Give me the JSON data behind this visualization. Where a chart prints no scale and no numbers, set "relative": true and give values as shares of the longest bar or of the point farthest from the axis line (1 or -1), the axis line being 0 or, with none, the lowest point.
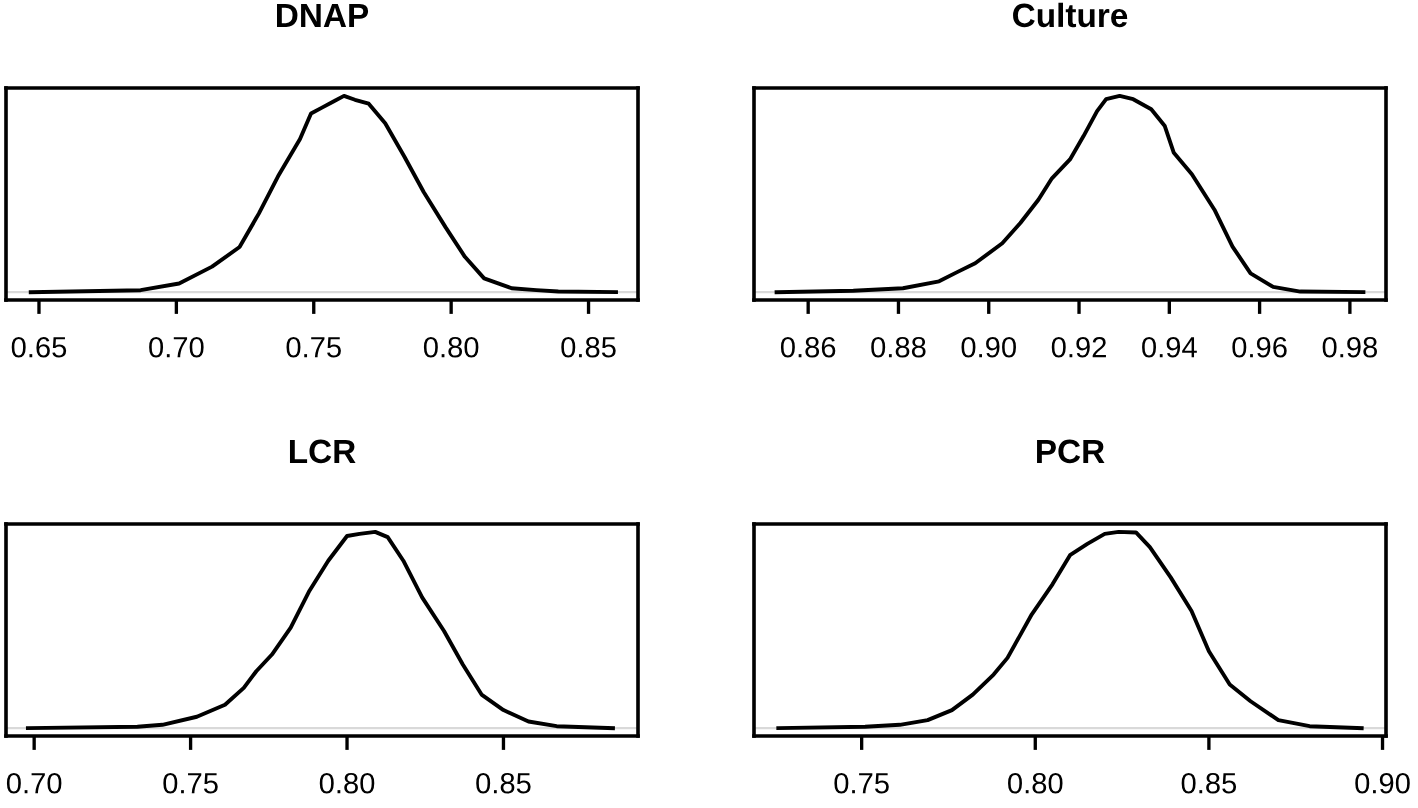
{
  "chart_data": [
    {
      "type": "line",
      "title": "DNAP",
      "relative": true,
      "tick_labels": "x",
      "xlim": [
        0.638,
        0.868
      ],
      "xticks": [
        0.65,
        {
          "value": 0.7,
          "label": "0.70"
        },
        0.75,
        {
          "value": 0.8,
          "label": "0.80"
        },
        0.85
      ],
      "ref_lines": [
        {
          "axis": "y",
          "value": 0,
          "color": "#d9d9d9"
        }
      ],
      "series": [
        {
          "color": "#000000",
          "x": [
            0.647,
            0.687,
            0.701,
            0.713,
            0.723,
            0.73,
            0.737,
            0.745,
            0.749,
            0.753,
            0.757,
            0.761,
            0.765,
            0.77,
            0.776,
            0.783,
            0.79,
            0.798,
            0.805,
            0.812,
            0.822,
            0.831,
            0.839,
            0.86
          ],
          "values": [
            0,
            0.01,
            0.044,
            0.13,
            0.23,
            0.4,
            0.59,
            0.78,
            0.91,
            0.94,
            0.97,
            1,
            0.98,
            0.96,
            0.86,
            0.69,
            0.51,
            0.33,
            0.18,
            0.07,
            0.02,
            0.01,
            0.003,
            0
          ]
        }
      ]
    },
    {
      "type": "line",
      "title": "Culture",
      "relative": true,
      "tick_labels": "x",
      "xlim": [
        0.848,
        0.988
      ],
      "xticks": [
        0.86,
        0.88,
        {
          "value": 0.9,
          "label": "0.90"
        },
        0.92,
        0.94,
        0.96,
        0.98
      ],
      "ref_lines": [
        {
          "axis": "y",
          "value": 0,
          "color": "#d9d9d9"
        }
      ],
      "series": [
        {
          "color": "#000000",
          "x": [
            0.853,
            0.87,
            0.881,
            0.889,
            0.893,
            0.897,
            0.903,
            0.907,
            0.911,
            0.914,
            0.918,
            0.921,
            0.924,
            0.926,
            0.929,
            0.932,
            0.936,
            0.939,
            0.941,
            0.945,
            0.95,
            0.954,
            0.958,
            0.963,
            0.969,
            0.983
          ],
          "values": [
            0,
            0.007,
            0.02,
            0.055,
            0.102,
            0.147,
            0.249,
            0.352,
            0.471,
            0.58,
            0.676,
            0.795,
            0.922,
            0.983,
            1,
            0.983,
            0.932,
            0.846,
            0.71,
            0.601,
            0.42,
            0.232,
            0.096,
            0.027,
            0.003,
            0
          ]
        }
      ]
    },
    {
      "type": "line",
      "title": "LCR",
      "relative": true,
      "tick_labels": "x",
      "xlim": [
        0.691,
        0.893
      ],
      "xticks": [
        {
          "value": 0.7,
          "label": "0.70"
        },
        0.75,
        {
          "value": 0.8,
          "label": "0.80"
        },
        0.85
      ],
      "ref_lines": [
        {
          "axis": "y",
          "value": 0,
          "color": "#d9d9d9"
        }
      ],
      "series": [
        {
          "color": "#000000",
          "x": [
            0.698,
            0.733,
            0.741,
            0.752,
            0.761,
            0.767,
            0.771,
            0.776,
            0.782,
            0.788,
            0.794,
            0.8,
            0.804,
            0.809,
            0.813,
            0.818,
            0.824,
            0.831,
            0.837,
            0.843,
            0.85,
            0.858,
            0.867,
            0.885
          ],
          "values": [
            0,
            0.007,
            0.017,
            0.058,
            0.119,
            0.205,
            0.29,
            0.375,
            0.512,
            0.7,
            0.853,
            0.979,
            0.99,
            1,
            0.973,
            0.853,
            0.666,
            0.495,
            0.324,
            0.171,
            0.092,
            0.034,
            0.01,
            0
          ]
        }
      ]
    },
    {
      "type": "line",
      "title": "PCR",
      "relative": true,
      "tick_labels": "x",
      "xlim": [
        0.719,
        0.901
      ],
      "xticks": [
        0.75,
        {
          "value": 0.8,
          "label": "0.80"
        },
        0.85,
        {
          "value": 0.9,
          "label": "0.90"
        }
      ],
      "ref_lines": [
        {
          "axis": "y",
          "value": 0,
          "color": "#d9d9d9"
        }
      ],
      "series": [
        {
          "color": "#000000",
          "x": [
            0.726,
            0.751,
            0.761,
            0.769,
            0.776,
            0.782,
            0.788,
            0.792,
            0.799,
            0.805,
            0.81,
            0.815,
            0.82,
            0.824,
            0.829,
            0.833,
            0.839,
            0.845,
            0.85,
            0.856,
            0.862,
            0.87,
            0.879,
            0.894
          ],
          "values": [
            0,
            0.007,
            0.017,
            0.041,
            0.092,
            0.171,
            0.273,
            0.358,
            0.58,
            0.734,
            0.881,
            0.939,
            0.99,
            1,
            0.997,
            0.922,
            0.768,
            0.597,
            0.392,
            0.222,
            0.137,
            0.041,
            0.01,
            0
          ]
        }
      ]
    }
  ]
}
